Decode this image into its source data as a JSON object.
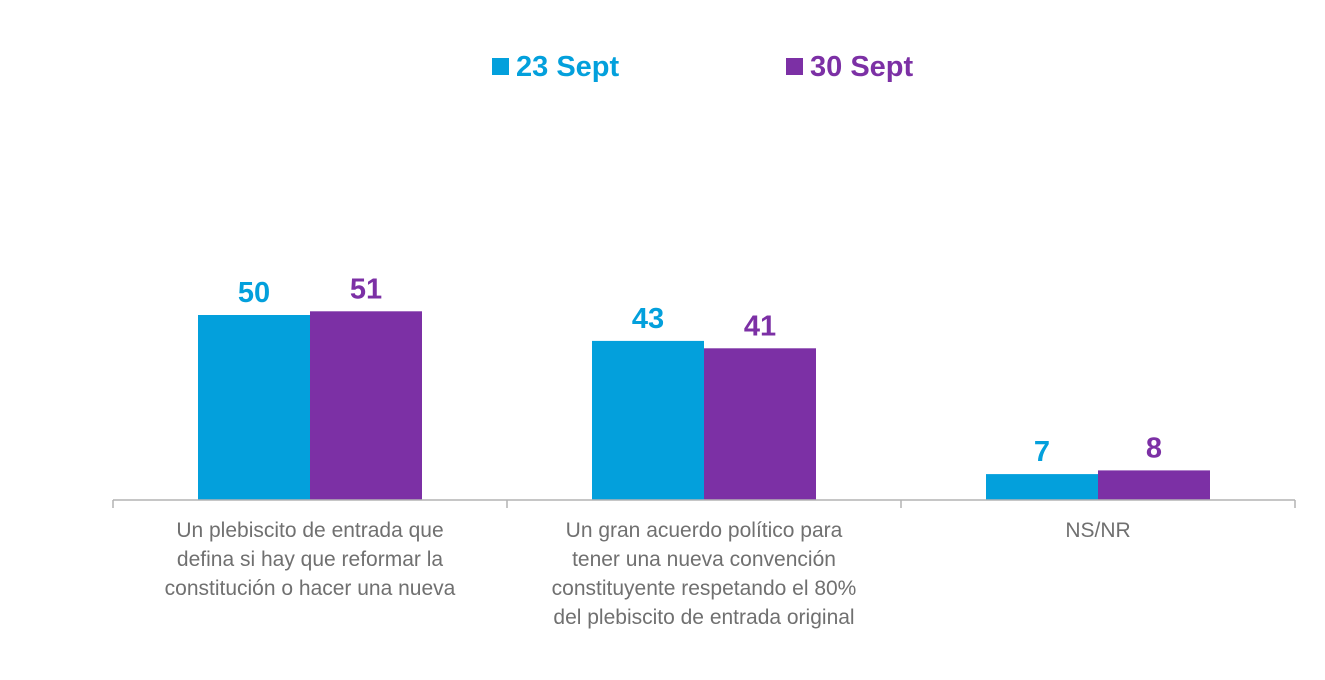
{
  "chart_data": {
    "type": "bar",
    "categories": [
      [
        "Un plebiscito de entrada que",
        "defina si hay que reformar la",
        "constitución o hacer una nueva"
      ],
      [
        "Un gran acuerdo político para",
        "tener una nueva convención",
        "constituyente respetando el 80%",
        "del plebiscito de entrada original"
      ],
      [
        "NS/NR"
      ]
    ],
    "series": [
      {
        "name": "23 Sept",
        "color": "#03a0dc",
        "values": [
          50,
          43,
          7
        ]
      },
      {
        "name": "30 Sept",
        "color": "#7c30a5",
        "values": [
          51,
          41,
          8
        ]
      }
    ],
    "ylim": [
      0,
      60
    ],
    "axis_color": "#b3b3b3",
    "grid": false,
    "legend_position": "top-center"
  }
}
